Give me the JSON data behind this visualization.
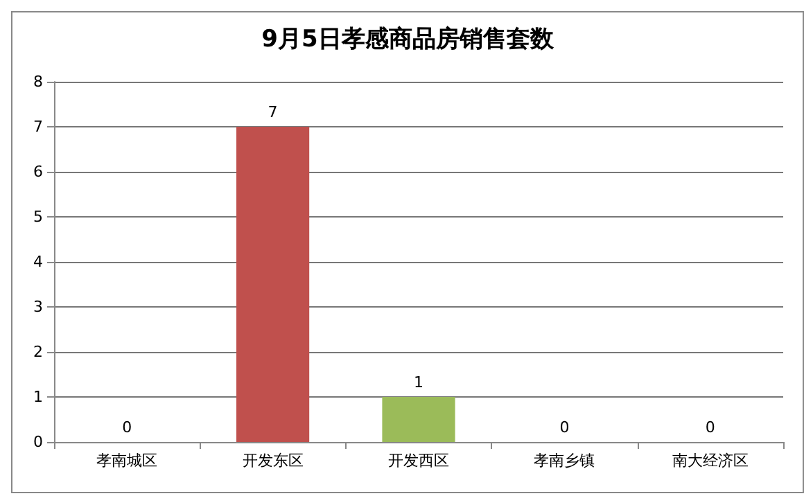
{
  "chart_data": {
    "type": "bar",
    "title": "9月5日孝感商品房销售套数",
    "categories": [
      "孝南城区",
      "开发东区",
      "开发西区",
      "孝南乡镇",
      "南大经济区"
    ],
    "values": [
      0,
      7,
      1,
      0,
      0
    ],
    "colors": [
      "#4f81bd",
      "#c0504d",
      "#9bbb59",
      "#8064a2",
      "#4bacc6"
    ],
    "ylim": [
      0,
      8
    ],
    "yticks": [
      0,
      1,
      2,
      3,
      4,
      5,
      6,
      7,
      8
    ],
    "grid": "y",
    "data_labels": true
  }
}
